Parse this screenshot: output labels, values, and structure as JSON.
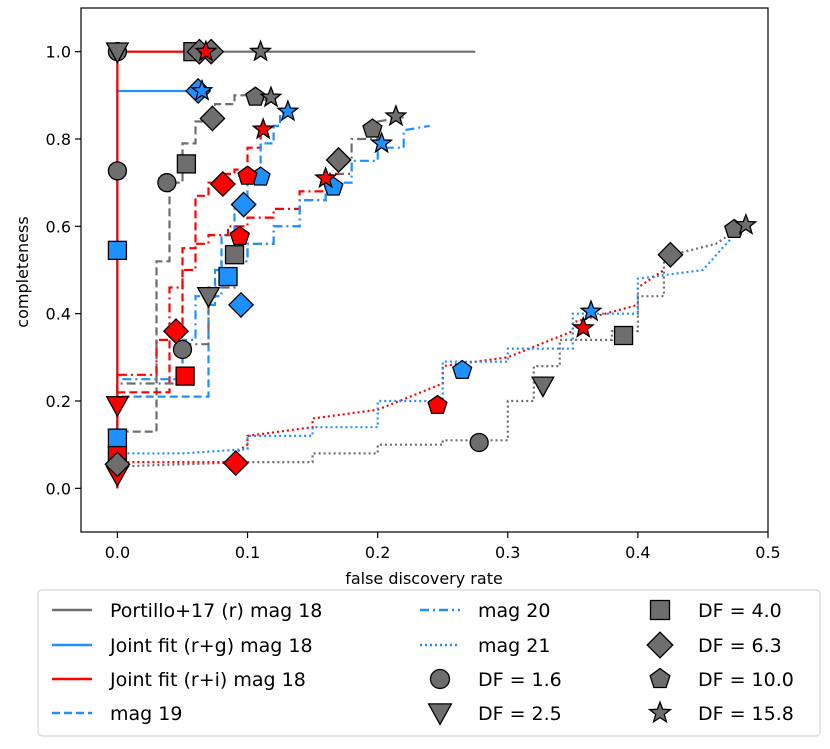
{
  "chart_data": {
    "type": "line",
    "xlabel": "false discovery rate",
    "ylabel": "completeness",
    "xlim": [
      -0.028,
      0.5
    ],
    "ylim": [
      -0.1,
      1.1
    ],
    "xticks": [
      0.0,
      0.1,
      0.2,
      0.3,
      0.4,
      0.5
    ],
    "xtick_labels": [
      "0.0",
      "0.1",
      "0.2",
      "0.3",
      "0.4",
      "0.5"
    ],
    "yticks": [
      0.0,
      0.2,
      0.4,
      0.6,
      0.8,
      1.0
    ],
    "ytick_labels": [
      "0.0",
      "0.2",
      "0.4",
      "0.6",
      "0.8",
      "1.0"
    ],
    "colors": {
      "gray": "#6e6e6e",
      "blue": "#1e90ff",
      "red": "#ff0000"
    },
    "series": [
      {
        "name": "Portillo+17 (r) mag 18",
        "color": "#6e6e6e",
        "dash": "solid",
        "x": [
          0.0,
          0.0,
          0.275
        ],
        "y": [
          0.0,
          1.0,
          1.0
        ]
      },
      {
        "name": "Joint fit (r+g) mag 18",
        "color": "#1e90ff",
        "dash": "solid",
        "x": [
          0.0,
          0.0,
          0.068
        ],
        "y": [
          0.0,
          0.91,
          0.91
        ]
      },
      {
        "name": "Joint fit (r+i) mag 18",
        "color": "#ff0000",
        "dash": "solid",
        "x": [
          0.0,
          0.0,
          0.075
        ],
        "y": [
          0.0,
          1.0,
          1.0
        ]
      },
      {
        "name": "mag 19",
        "color": "#1e90ff",
        "dash": "dashed",
        "x": [
          0.0,
          0.0,
          0.07,
          0.07,
          0.075,
          0.075,
          0.08,
          0.08,
          0.09,
          0.09,
          0.1,
          0.1,
          0.11,
          0.11,
          0.12,
          0.12,
          0.125,
          0.125,
          0.13
        ],
        "y": [
          0.0,
          0.21,
          0.21,
          0.42,
          0.42,
          0.5,
          0.5,
          0.58,
          0.58,
          0.64,
          0.64,
          0.72,
          0.72,
          0.79,
          0.79,
          0.83,
          0.83,
          0.86,
          0.86
        ],
        "gray_overlay": {
          "x": [
            0.0,
            0.0,
            0.03,
            0.03,
            0.04,
            0.04,
            0.05,
            0.05,
            0.06,
            0.06,
            0.075,
            0.075,
            0.09,
            0.09,
            0.1,
            0.1,
            0.12
          ],
          "y": [
            0.0,
            0.13,
            0.13,
            0.52,
            0.52,
            0.7,
            0.7,
            0.79,
            0.79,
            0.84,
            0.84,
            0.88,
            0.88,
            0.9,
            0.9,
            0.89,
            0.89
          ]
        },
        "red_overlay": {
          "x": [
            0.0,
            0.0,
            0.04,
            0.04,
            0.05,
            0.05,
            0.06,
            0.06,
            0.07,
            0.07,
            0.08,
            0.08,
            0.09,
            0.09,
            0.1,
            0.1,
            0.11,
            0.11,
            0.115
          ],
          "y": [
            0.0,
            0.22,
            0.22,
            0.36,
            0.36,
            0.55,
            0.55,
            0.67,
            0.67,
            0.7,
            0.7,
            0.72,
            0.72,
            0.73,
            0.73,
            0.78,
            0.78,
            0.82,
            0.82
          ]
        }
      },
      {
        "name": "mag 20",
        "color": "#1e90ff",
        "dash": "dashdot",
        "x": [
          0.0,
          0.0,
          0.05,
          0.05,
          0.06,
          0.06,
          0.08,
          0.08,
          0.1,
          0.1,
          0.12,
          0.12,
          0.14,
          0.14,
          0.16,
          0.16,
          0.18,
          0.18,
          0.2,
          0.2,
          0.22,
          0.22,
          0.24
        ],
        "y": [
          0.0,
          0.25,
          0.25,
          0.34,
          0.34,
          0.44,
          0.44,
          0.52,
          0.52,
          0.56,
          0.56,
          0.6,
          0.6,
          0.66,
          0.66,
          0.7,
          0.7,
          0.75,
          0.75,
          0.78,
          0.78,
          0.82,
          0.83
        ],
        "gray_overlay": {
          "x": [
            0.0,
            0.0,
            0.05,
            0.05,
            0.07,
            0.07,
            0.09,
            0.09,
            0.1,
            0.1,
            0.12,
            0.12,
            0.14,
            0.14,
            0.16,
            0.16,
            0.18,
            0.18,
            0.2,
            0.2,
            0.22
          ],
          "y": [
            0.0,
            0.24,
            0.24,
            0.33,
            0.33,
            0.46,
            0.46,
            0.52,
            0.52,
            0.56,
            0.56,
            0.6,
            0.6,
            0.66,
            0.66,
            0.72,
            0.72,
            0.8,
            0.8,
            0.84,
            0.85
          ]
        },
        "red_overlay": {
          "x": [
            0.0,
            0.0,
            0.03,
            0.03,
            0.04,
            0.04,
            0.05,
            0.05,
            0.06,
            0.06,
            0.07,
            0.07,
            0.085,
            0.085,
            0.1,
            0.1,
            0.12,
            0.12,
            0.14,
            0.14,
            0.16,
            0.16,
            0.17
          ],
          "y": [
            0.0,
            0.26,
            0.26,
            0.34,
            0.34,
            0.46,
            0.46,
            0.5,
            0.5,
            0.56,
            0.56,
            0.58,
            0.58,
            0.6,
            0.6,
            0.62,
            0.62,
            0.64,
            0.64,
            0.68,
            0.68,
            0.72,
            0.72
          ]
        }
      },
      {
        "name": "mag 21",
        "color": "#1e90ff",
        "dash": "dotted",
        "x": [
          0.0,
          0.05,
          0.1,
          0.1,
          0.15,
          0.15,
          0.2,
          0.2,
          0.25,
          0.25,
          0.3,
          0.3,
          0.35,
          0.35,
          0.4,
          0.4,
          0.45,
          0.48
        ],
        "y": [
          0.08,
          0.08,
          0.09,
          0.12,
          0.12,
          0.14,
          0.14,
          0.2,
          0.2,
          0.29,
          0.29,
          0.32,
          0.32,
          0.4,
          0.4,
          0.48,
          0.5,
          0.6
        ],
        "gray_overlay": {
          "x": [
            0.0,
            0.1,
            0.15,
            0.15,
            0.2,
            0.2,
            0.25,
            0.25,
            0.3,
            0.3,
            0.32,
            0.32,
            0.34,
            0.34,
            0.38,
            0.38,
            0.4,
            0.4,
            0.42,
            0.42,
            0.46,
            0.48
          ],
          "y": [
            0.05,
            0.06,
            0.06,
            0.08,
            0.08,
            0.1,
            0.1,
            0.11,
            0.11,
            0.2,
            0.2,
            0.28,
            0.28,
            0.34,
            0.34,
            0.36,
            0.36,
            0.44,
            0.44,
            0.53,
            0.56,
            0.6
          ]
        },
        "red_overlay": {
          "x": [
            0.0,
            0.09,
            0.09,
            0.1,
            0.1,
            0.15,
            0.15,
            0.2,
            0.2,
            0.25,
            0.25,
            0.3,
            0.3,
            0.35,
            0.35,
            0.4,
            0.4,
            0.42
          ],
          "y": [
            0.06,
            0.06,
            0.08,
            0.1,
            0.12,
            0.14,
            0.16,
            0.18,
            0.18,
            0.24,
            0.28,
            0.3,
            0.3,
            0.36,
            0.38,
            0.42,
            0.46,
            0.5
          ]
        }
      }
    ],
    "markers": [
      {
        "df": "1.6",
        "shape": "circle",
        "color": "#6e6e6e",
        "x": 0.0,
        "y": 1.0
      },
      {
        "df": "1.6",
        "shape": "circle",
        "color": "#6e6e6e",
        "x": 0.0,
        "y": 0.727
      },
      {
        "df": "1.6",
        "shape": "circle",
        "color": "#6e6e6e",
        "x": 0.0,
        "y": 0.08
      },
      {
        "df": "1.6",
        "shape": "circle",
        "color": "#6e6e6e",
        "x": 0.038,
        "y": 0.7
      },
      {
        "df": "1.6",
        "shape": "circle",
        "color": "#6e6e6e",
        "x": 0.05,
        "y": 0.318
      },
      {
        "df": "1.6",
        "shape": "circle",
        "color": "#6e6e6e",
        "x": 0.278,
        "y": 0.105
      },
      {
        "df": "2.5",
        "shape": "triangle-down",
        "color": "#6e6e6e",
        "x": 0.0,
        "y": 1.0
      },
      {
        "df": "2.5",
        "shape": "triangle-down",
        "color": "#ff0000",
        "x": 0.0,
        "y": 0.19
      },
      {
        "df": "2.5",
        "shape": "triangle-down",
        "color": "#ff0000",
        "x": 0.0,
        "y": 0.03
      },
      {
        "df": "2.5",
        "shape": "triangle-down",
        "color": "#6e6e6e",
        "x": 0.07,
        "y": 0.44
      },
      {
        "df": "2.5",
        "shape": "triangle-down",
        "color": "#6e6e6e",
        "x": 0.327,
        "y": 0.235
      },
      {
        "df": "4.0",
        "shape": "square",
        "color": "#1e90ff",
        "x": 0.0,
        "y": 0.545
      },
      {
        "df": "4.0",
        "shape": "square",
        "color": "#1e90ff",
        "x": 0.0,
        "y": 0.115
      },
      {
        "df": "4.0",
        "shape": "square",
        "color": "#ff0000",
        "x": 0.0,
        "y": 0.075
      },
      {
        "df": "4.0",
        "shape": "square",
        "color": "#ff0000",
        "x": 0.052,
        "y": 0.257
      },
      {
        "df": "4.0",
        "shape": "square",
        "color": "#6e6e6e",
        "x": 0.053,
        "y": 0.743
      },
      {
        "df": "4.0",
        "shape": "square",
        "color": "#6e6e6e",
        "x": 0.058,
        "y": 1.0
      },
      {
        "df": "4.0",
        "shape": "square",
        "color": "#6e6e6e",
        "x": 0.09,
        "y": 0.535
      },
      {
        "df": "4.0",
        "shape": "square",
        "color": "#1e90ff",
        "x": 0.085,
        "y": 0.485
      },
      {
        "df": "4.0",
        "shape": "square",
        "color": "#6e6e6e",
        "x": 0.389,
        "y": 0.35
      },
      {
        "df": "6.3",
        "shape": "diamond",
        "color": "#6e6e6e",
        "x": 0.0,
        "y": 0.055
      },
      {
        "df": "6.3",
        "shape": "diamond",
        "color": "#6e6e6e",
        "x": 0.063,
        "y": 1.0
      },
      {
        "df": "6.3",
        "shape": "diamond",
        "color": "#6e6e6e",
        "x": 0.072,
        "y": 1.0
      },
      {
        "df": "6.3",
        "shape": "diamond",
        "color": "#1e90ff",
        "x": 0.062,
        "y": 0.91
      },
      {
        "df": "6.3",
        "shape": "diamond",
        "color": "#6e6e6e",
        "x": 0.073,
        "y": 0.847
      },
      {
        "df": "6.3",
        "shape": "diamond",
        "color": "#ff0000",
        "x": 0.045,
        "y": 0.36
      },
      {
        "df": "6.3",
        "shape": "diamond",
        "color": "#ff0000",
        "x": 0.081,
        "y": 0.697
      },
      {
        "df": "6.3",
        "shape": "diamond",
        "color": "#1e90ff",
        "x": 0.097,
        "y": 0.65
      },
      {
        "df": "6.3",
        "shape": "diamond",
        "color": "#1e90ff",
        "x": 0.095,
        "y": 0.42
      },
      {
        "df": "6.3",
        "shape": "diamond",
        "color": "#ff0000",
        "x": 0.091,
        "y": 0.058
      },
      {
        "df": "6.3",
        "shape": "diamond",
        "color": "#6e6e6e",
        "x": 0.17,
        "y": 0.752
      },
      {
        "df": "6.3",
        "shape": "diamond",
        "color": "#6e6e6e",
        "x": 0.425,
        "y": 0.535
      },
      {
        "df": "10.0",
        "shape": "pentagon",
        "color": "#ff0000",
        "x": 0.094,
        "y": 0.577
      },
      {
        "df": "10.0",
        "shape": "pentagon",
        "color": "#6e6e6e",
        "x": 0.106,
        "y": 0.896
      },
      {
        "df": "10.0",
        "shape": "pentagon",
        "color": "#1e90ff",
        "x": 0.11,
        "y": 0.713
      },
      {
        "df": "10.0",
        "shape": "pentagon",
        "color": "#ff0000",
        "x": 0.1,
        "y": 0.715
      },
      {
        "df": "10.0",
        "shape": "pentagon",
        "color": "#1e90ff",
        "x": 0.166,
        "y": 0.69
      },
      {
        "df": "10.0",
        "shape": "pentagon",
        "color": "#6e6e6e",
        "x": 0.196,
        "y": 0.823
      },
      {
        "df": "10.0",
        "shape": "pentagon",
        "color": "#ff0000",
        "x": 0.246,
        "y": 0.19
      },
      {
        "df": "10.0",
        "shape": "pentagon",
        "color": "#1e90ff",
        "x": 0.265,
        "y": 0.27
      },
      {
        "df": "10.0",
        "shape": "pentagon",
        "color": "#6e6e6e",
        "x": 0.474,
        "y": 0.593
      },
      {
        "df": "15.8",
        "shape": "star",
        "color": "#ff0000",
        "x": 0.068,
        "y": 1.0
      },
      {
        "df": "15.8",
        "shape": "star",
        "color": "#6e6e6e",
        "x": 0.11,
        "y": 1.0
      },
      {
        "df": "15.8",
        "shape": "star",
        "color": "#1e90ff",
        "x": 0.065,
        "y": 0.91
      },
      {
        "df": "15.8",
        "shape": "star",
        "color": "#6e6e6e",
        "x": 0.118,
        "y": 0.895
      },
      {
        "df": "15.8",
        "shape": "star",
        "color": "#1e90ff",
        "x": 0.131,
        "y": 0.863
      },
      {
        "df": "15.8",
        "shape": "star",
        "color": "#ff0000",
        "x": 0.112,
        "y": 0.822
      },
      {
        "df": "15.8",
        "shape": "star",
        "color": "#6e6e6e",
        "x": 0.214,
        "y": 0.852
      },
      {
        "df": "15.8",
        "shape": "star",
        "color": "#1e90ff",
        "x": 0.203,
        "y": 0.79
      },
      {
        "df": "15.8",
        "shape": "star",
        "color": "#ff0000",
        "x": 0.16,
        "y": 0.71
      },
      {
        "df": "15.8",
        "shape": "star",
        "color": "#ff0000",
        "x": 0.358,
        "y": 0.367
      },
      {
        "df": "15.8",
        "shape": "star",
        "color": "#1e90ff",
        "x": 0.364,
        "y": 0.405
      },
      {
        "df": "15.8",
        "shape": "star",
        "color": "#6e6e6e",
        "x": 0.483,
        "y": 0.603
      }
    ],
    "legend": {
      "placement": "below",
      "entries": [
        {
          "label": "Portillo+17 (r) mag 18",
          "kind": "line",
          "color": "#6e6e6e",
          "dash": "solid"
        },
        {
          "label": "Joint fit (r+g) mag 18",
          "kind": "line",
          "color": "#1e90ff",
          "dash": "solid"
        },
        {
          "label": "Joint fit (r+i) mag 18",
          "kind": "line",
          "color": "#ff0000",
          "dash": "solid"
        },
        {
          "label": "mag 19",
          "kind": "line",
          "color": "#1e90ff",
          "dash": "dashed"
        },
        {
          "label": "mag 20",
          "kind": "line",
          "color": "#1e90ff",
          "dash": "dashdot"
        },
        {
          "label": "mag 21",
          "kind": "line",
          "color": "#1e90ff",
          "dash": "dotted"
        },
        {
          "label": "DF = 1.6",
          "kind": "marker",
          "shape": "circle",
          "color": "#6e6e6e"
        },
        {
          "label": "DF = 2.5",
          "kind": "marker",
          "shape": "triangle-down",
          "color": "#6e6e6e"
        },
        {
          "label": "DF = 4.0",
          "kind": "marker",
          "shape": "square",
          "color": "#6e6e6e"
        },
        {
          "label": "DF = 6.3",
          "kind": "marker",
          "shape": "diamond",
          "color": "#6e6e6e"
        },
        {
          "label": "DF = 10.0",
          "kind": "marker",
          "shape": "pentagon",
          "color": "#6e6e6e"
        },
        {
          "label": "DF = 15.8",
          "kind": "marker",
          "shape": "star",
          "color": "#6e6e6e"
        }
      ]
    }
  }
}
